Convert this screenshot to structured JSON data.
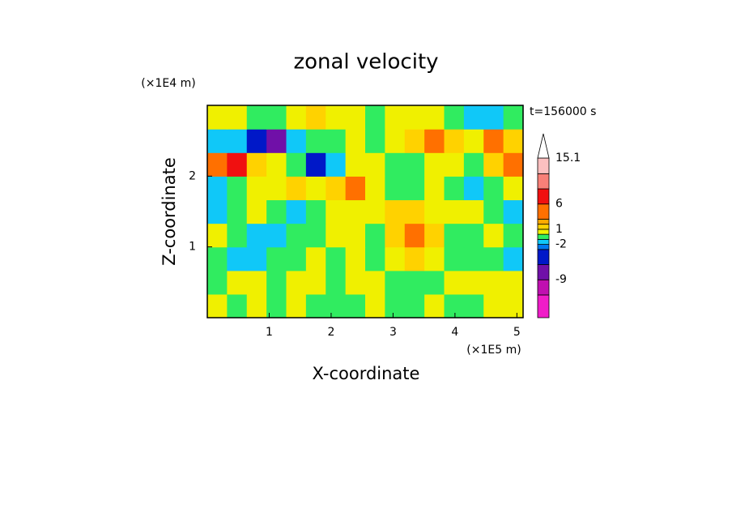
{
  "chart_data": {
    "type": "contourf",
    "title": "zonal velocity",
    "time_label": "t=156000 s",
    "xlabel": "X-coordinate",
    "ylabel": "Z-coordinate",
    "x_unit": "(×1E5 m)",
    "y_unit": "(×1E4 m)",
    "xlim": [
      0,
      5.1
    ],
    "ylim": [
      0,
      3
    ],
    "xticks": [
      1,
      2,
      3,
      4,
      5
    ],
    "yticks": [
      1,
      2
    ],
    "x": [
      0.159,
      0.478,
      0.797,
      1.116,
      1.434,
      1.753,
      2.072,
      2.391,
      2.709,
      3.028,
      3.347,
      3.666,
      3.984,
      4.303,
      4.622,
      4.941
    ],
    "y": [
      0.167,
      0.5,
      0.833,
      1.167,
      1.5,
      1.833,
      2.167,
      2.5,
      2.833
    ],
    "z": [
      [
        0.5,
        -0.5,
        0.5,
        -0.5,
        0.5,
        -0.5,
        -0.5,
        -0.5,
        0.5,
        -0.5,
        -0.5,
        0.5,
        -0.5,
        -0.5,
        0.5,
        0.5
      ],
      [
        -0.5,
        0.5,
        0.5,
        -0.5,
        0.5,
        0.5,
        -0.5,
        0.5,
        0.5,
        -0.5,
        -0.5,
        -0.5,
        0.5,
        0.5,
        0.5,
        0.5
      ],
      [
        -0.5,
        -1.5,
        -1.5,
        -0.5,
        -0.5,
        0.5,
        -0.5,
        0.5,
        -0.5,
        0.5,
        1.5,
        0.5,
        -0.5,
        -0.5,
        -0.5,
        -1.5
      ],
      [
        0.5,
        -0.5,
        -1.5,
        -1.5,
        -0.5,
        -0.5,
        0.5,
        0.5,
        -0.5,
        1.5,
        4,
        1.5,
        -0.5,
        -0.5,
        0.5,
        -0.5
      ],
      [
        -1.5,
        -0.5,
        0.5,
        -0.5,
        -1.5,
        -0.5,
        0.5,
        0.5,
        0.5,
        1.5,
        1.5,
        0.5,
        0.5,
        0.5,
        -0.5,
        -1.5
      ],
      [
        -1.5,
        -0.5,
        0.5,
        0.5,
        1.5,
        0.5,
        1.5,
        4,
        0.5,
        -0.5,
        -0.5,
        0.5,
        -0.5,
        -1.5,
        -0.5,
        0.5
      ],
      [
        4,
        7,
        1.5,
        0.5,
        -0.5,
        -4,
        -1.5,
        0.5,
        0.5,
        -0.5,
        -0.5,
        0.5,
        0.5,
        -0.5,
        1.5,
        4
      ],
      [
        -1.5,
        -1.5,
        -4,
        -7,
        -1.5,
        -0.5,
        -0.5,
        0.5,
        -0.5,
        0.5,
        1.5,
        4,
        1.5,
        0.5,
        4,
        1.5
      ],
      [
        0.5,
        0.5,
        -0.5,
        -0.5,
        0.5,
        1.5,
        0.5,
        0.5,
        -0.5,
        0.5,
        0.5,
        0.5,
        -0.5,
        -1.5,
        -1.5,
        -0.5
      ]
    ],
    "levels": [
      -16.5,
      -12,
      -9,
      -6,
      -3,
      -2,
      -1,
      0,
      1,
      2,
      3,
      6,
      9,
      12,
      15.1
    ],
    "colors": [
      "#f01cc8",
      "#c010b0",
      "#7010a8",
      "#0018c8",
      "#0078f0",
      "#10c8f8",
      "#30ec60",
      "#f0f000",
      "#ffd200",
      "#ffaa00",
      "#ff7000",
      "#f01010",
      "#f88078",
      "#fcc0c0"
    ],
    "extend_color": "#ffffff",
    "colorbar_ticks": [
      15.1,
      6,
      1,
      -2,
      -9
    ]
  }
}
